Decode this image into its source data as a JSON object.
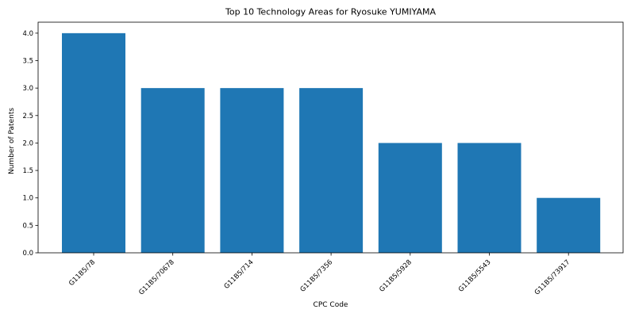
{
  "chart_data": {
    "type": "bar",
    "title": "Top 10 Technology Areas for Ryosuke YUMIYAMA",
    "xlabel": "CPC Code",
    "ylabel": "Number of Patents",
    "categories": [
      "G11B5/78",
      "G11B5/70678",
      "G11B5/714",
      "G11B5/7356",
      "G11B5/5928",
      "G11B5/5543",
      "G11B5/73917"
    ],
    "values": [
      4,
      3,
      3,
      3,
      2,
      2,
      1
    ],
    "ylim": [
      0,
      4.2
    ],
    "yticks": [
      "0.0",
      "0.5",
      "1.0",
      "1.5",
      "2.0",
      "2.5",
      "3.0",
      "3.5",
      "4.0"
    ],
    "grid": false,
    "colors": {
      "bar": "#1f77b4",
      "axis": "#000000"
    }
  }
}
